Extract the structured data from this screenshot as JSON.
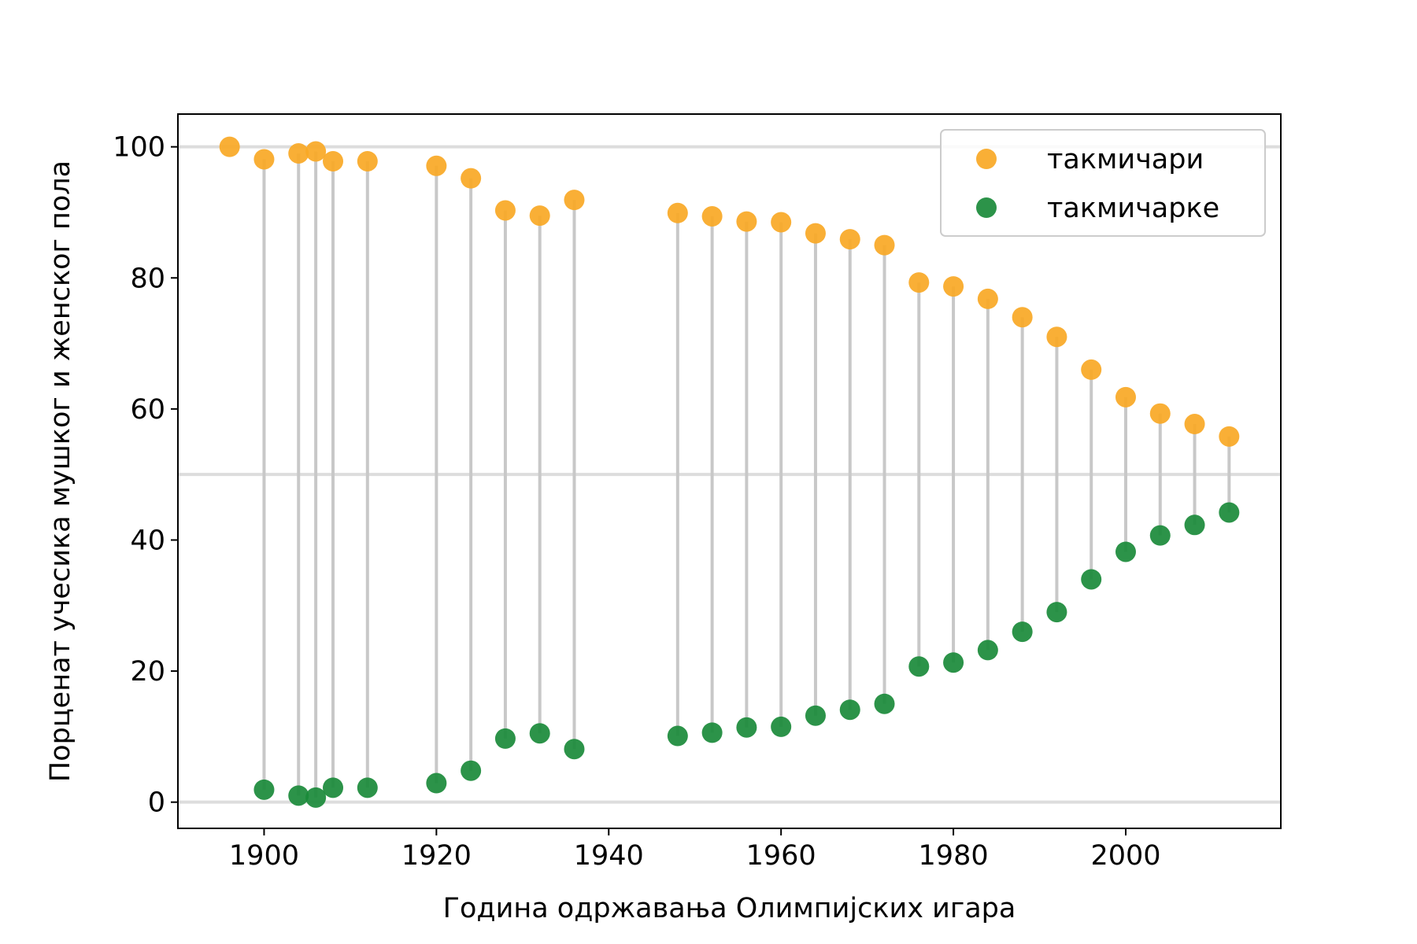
{
  "chart_data": {
    "type": "scatter",
    "title": "",
    "xlabel": "Година одржавања Олимпијских игара",
    "ylabel": "Порценат учесика мушког и женског пола",
    "xlim": [
      1890,
      2018
    ],
    "ylim": [
      -4,
      105
    ],
    "x_ticks": [
      1900,
      1920,
      1940,
      1960,
      1980,
      2000
    ],
    "y_ticks": [
      0,
      20,
      40,
      60,
      80,
      100
    ],
    "reference_lines": [
      0,
      50,
      100
    ],
    "grid": false,
    "legend_position": "top-right",
    "series": [
      {
        "name": "такмичари",
        "color": "#f9a825",
        "points": [
          {
            "x": 1896,
            "y": 100.0
          },
          {
            "x": 1900,
            "y": 98.1
          },
          {
            "x": 1904,
            "y": 99.0
          },
          {
            "x": 1906,
            "y": 99.3
          },
          {
            "x": 1908,
            "y": 97.8
          },
          {
            "x": 1912,
            "y": 97.8
          },
          {
            "x": 1920,
            "y": 97.1
          },
          {
            "x": 1924,
            "y": 95.2
          },
          {
            "x": 1928,
            "y": 90.3
          },
          {
            "x": 1932,
            "y": 89.5
          },
          {
            "x": 1936,
            "y": 91.9
          },
          {
            "x": 1948,
            "y": 89.9
          },
          {
            "x": 1952,
            "y": 89.4
          },
          {
            "x": 1956,
            "y": 88.6
          },
          {
            "x": 1960,
            "y": 88.5
          },
          {
            "x": 1964,
            "y": 86.8
          },
          {
            "x": 1968,
            "y": 85.9
          },
          {
            "x": 1972,
            "y": 85.0
          },
          {
            "x": 1976,
            "y": 79.3
          },
          {
            "x": 1980,
            "y": 78.7
          },
          {
            "x": 1984,
            "y": 76.8
          },
          {
            "x": 1988,
            "y": 74.0
          },
          {
            "x": 1992,
            "y": 71.0
          },
          {
            "x": 1996,
            "y": 66.0
          },
          {
            "x": 2000,
            "y": 61.8
          },
          {
            "x": 2004,
            "y": 59.3
          },
          {
            "x": 2008,
            "y": 57.7
          },
          {
            "x": 2012,
            "y": 55.8
          }
        ]
      },
      {
        "name": "такмичарке",
        "color": "#1a8a3a",
        "points": [
          {
            "x": 1900,
            "y": 1.9
          },
          {
            "x": 1904,
            "y": 1.0
          },
          {
            "x": 1906,
            "y": 0.7
          },
          {
            "x": 1908,
            "y": 2.2
          },
          {
            "x": 1912,
            "y": 2.2
          },
          {
            "x": 1920,
            "y": 2.9
          },
          {
            "x": 1924,
            "y": 4.8
          },
          {
            "x": 1928,
            "y": 9.7
          },
          {
            "x": 1932,
            "y": 10.5
          },
          {
            "x": 1936,
            "y": 8.1
          },
          {
            "x": 1948,
            "y": 10.1
          },
          {
            "x": 1952,
            "y": 10.6
          },
          {
            "x": 1956,
            "y": 11.4
          },
          {
            "x": 1960,
            "y": 11.5
          },
          {
            "x": 1964,
            "y": 13.2
          },
          {
            "x": 1968,
            "y": 14.1
          },
          {
            "x": 1972,
            "y": 15.0
          },
          {
            "x": 1976,
            "y": 20.7
          },
          {
            "x": 1980,
            "y": 21.3
          },
          {
            "x": 1984,
            "y": 23.2
          },
          {
            "x": 1988,
            "y": 26.0
          },
          {
            "x": 1992,
            "y": 29.0
          },
          {
            "x": 1996,
            "y": 34.0
          },
          {
            "x": 2000,
            "y": 38.2
          },
          {
            "x": 2004,
            "y": 40.7
          },
          {
            "x": 2008,
            "y": 42.3
          },
          {
            "x": 2012,
            "y": 44.2
          }
        ]
      }
    ]
  }
}
